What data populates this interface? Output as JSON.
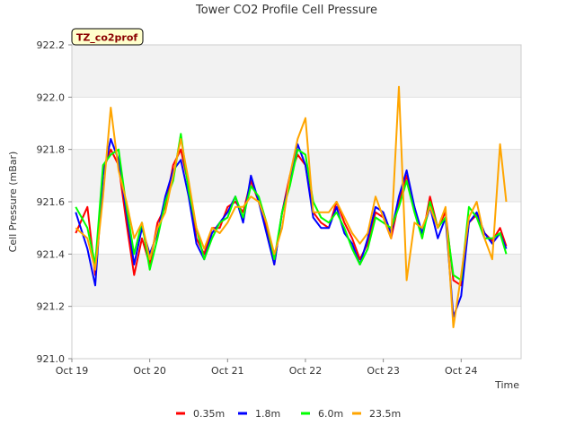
{
  "chart_data": {
    "type": "line",
    "title": "Tower CO2 Profile Cell Pressure",
    "badge": "TZ_co2prof",
    "xlabel": "Time",
    "ylabel": "Cell Pressure (mBar)",
    "ylim": [
      921.0,
      922.2
    ],
    "yticks": [
      921.0,
      921.2,
      921.4,
      921.6,
      921.8,
      922.0,
      922.2
    ],
    "ytick_labels": [
      "921.0",
      "921.2",
      "921.4",
      "921.6",
      "921.8",
      "922.0",
      "922.2"
    ],
    "xlim": [
      0,
      5.77
    ],
    "xticks": [
      0,
      1,
      2,
      3,
      4,
      5
    ],
    "xtick_labels": [
      "Oct 19",
      "Oct 20",
      "Oct 21",
      "Oct 22",
      "Oct 23",
      "Oct 24"
    ],
    "grid": true,
    "legend_position": "bottom",
    "series": [
      {
        "name": "0.35m",
        "color": "#ff0000",
        "x": [
          0.05,
          0.2,
          0.3,
          0.4,
          0.5,
          0.6,
          0.7,
          0.8,
          0.9,
          1.0,
          1.1,
          1.2,
          1.3,
          1.4,
          1.5,
          1.6,
          1.7,
          1.8,
          1.9,
          2.0,
          2.1,
          2.2,
          2.3,
          2.4,
          2.5,
          2.6,
          2.7,
          2.8,
          2.9,
          3.0,
          3.1,
          3.2,
          3.3,
          3.4,
          3.5,
          3.6,
          3.7,
          3.8,
          3.9,
          4.0,
          4.1,
          4.2,
          4.3,
          4.4,
          4.5,
          4.6,
          4.7,
          4.8,
          4.9,
          5.0,
          5.1,
          5.2,
          5.3,
          5.4,
          5.5,
          5.58
        ],
        "values": [
          921.48,
          921.58,
          921.32,
          921.72,
          921.8,
          921.74,
          921.52,
          921.32,
          921.46,
          921.36,
          921.52,
          921.58,
          921.74,
          921.8,
          921.66,
          921.46,
          921.4,
          921.5,
          921.5,
          921.58,
          921.6,
          921.56,
          921.68,
          921.6,
          921.5,
          921.36,
          921.56,
          921.7,
          921.78,
          921.74,
          921.56,
          921.52,
          921.5,
          921.6,
          921.52,
          921.46,
          921.38,
          921.44,
          921.56,
          921.54,
          921.46,
          921.6,
          921.7,
          921.58,
          921.46,
          921.62,
          921.5,
          921.56,
          921.3,
          921.28,
          921.52,
          921.55,
          921.48,
          921.45,
          921.5,
          921.43
        ]
      },
      {
        "name": "1.8m",
        "color": "#0000ff",
        "x": [
          0.05,
          0.2,
          0.3,
          0.4,
          0.5,
          0.6,
          0.7,
          0.8,
          0.9,
          1.0,
          1.1,
          1.2,
          1.3,
          1.4,
          1.5,
          1.6,
          1.7,
          1.8,
          1.9,
          2.0,
          2.1,
          2.2,
          2.3,
          2.4,
          2.5,
          2.6,
          2.7,
          2.8,
          2.9,
          3.0,
          3.1,
          3.2,
          3.3,
          3.4,
          3.5,
          3.6,
          3.7,
          3.8,
          3.9,
          4.0,
          4.1,
          4.2,
          4.3,
          4.4,
          4.5,
          4.6,
          4.7,
          4.8,
          4.9,
          5.0,
          5.1,
          5.2,
          5.3,
          5.4,
          5.5,
          5.58
        ],
        "values": [
          921.56,
          921.42,
          921.28,
          921.7,
          921.84,
          921.76,
          921.56,
          921.36,
          921.5,
          921.4,
          921.48,
          921.62,
          921.72,
          921.76,
          921.62,
          921.44,
          921.38,
          921.48,
          921.52,
          921.56,
          921.62,
          921.52,
          921.7,
          921.6,
          921.48,
          921.36,
          921.56,
          921.68,
          921.82,
          921.74,
          921.54,
          921.5,
          921.5,
          921.58,
          921.48,
          921.44,
          921.36,
          921.46,
          921.58,
          921.56,
          921.48,
          921.62,
          921.72,
          921.58,
          921.48,
          921.58,
          921.46,
          921.54,
          921.16,
          921.24,
          921.52,
          921.56,
          921.48,
          921.44,
          921.48,
          921.42
        ]
      },
      {
        "name": "6.0m",
        "color": "#00ff00",
        "x": [
          0.05,
          0.2,
          0.3,
          0.4,
          0.5,
          0.6,
          0.7,
          0.8,
          0.9,
          1.0,
          1.1,
          1.2,
          1.3,
          1.4,
          1.5,
          1.6,
          1.7,
          1.8,
          1.9,
          2.0,
          2.1,
          2.2,
          2.3,
          2.4,
          2.5,
          2.6,
          2.7,
          2.8,
          2.9,
          3.0,
          3.1,
          3.2,
          3.3,
          3.4,
          3.5,
          3.6,
          3.7,
          3.8,
          3.9,
          4.0,
          4.1,
          4.2,
          4.3,
          4.4,
          4.5,
          4.6,
          4.7,
          4.8,
          4.9,
          5.0,
          5.1,
          5.2,
          5.3,
          5.4,
          5.5,
          5.58
        ],
        "values": [
          921.58,
          921.5,
          921.36,
          921.74,
          921.78,
          921.8,
          921.58,
          921.4,
          921.52,
          921.34,
          921.46,
          921.6,
          921.68,
          921.86,
          921.64,
          921.5,
          921.38,
          921.46,
          921.52,
          921.54,
          921.62,
          921.54,
          921.66,
          921.62,
          921.52,
          921.38,
          921.56,
          921.66,
          921.8,
          921.78,
          921.6,
          921.54,
          921.52,
          921.56,
          921.5,
          921.42,
          921.36,
          921.42,
          921.54,
          921.52,
          921.5,
          921.58,
          921.68,
          921.56,
          921.46,
          921.6,
          921.5,
          921.54,
          921.32,
          921.3,
          921.58,
          921.54,
          921.46,
          921.46,
          921.48,
          921.4
        ]
      },
      {
        "name": "23.5m",
        "color": "#ffa500",
        "x": [
          0.05,
          0.2,
          0.3,
          0.4,
          0.5,
          0.6,
          0.7,
          0.8,
          0.9,
          1.0,
          1.1,
          1.2,
          1.3,
          1.4,
          1.5,
          1.6,
          1.7,
          1.8,
          1.9,
          2.0,
          2.1,
          2.2,
          2.3,
          2.4,
          2.5,
          2.6,
          2.7,
          2.8,
          2.9,
          3.0,
          3.1,
          3.2,
          3.3,
          3.4,
          3.5,
          3.6,
          3.7,
          3.8,
          3.9,
          4.0,
          4.1,
          4.2,
          4.3,
          4.4,
          4.5,
          4.6,
          4.7,
          4.8,
          4.9,
          5.0,
          5.1,
          5.2,
          5.3,
          5.4,
          5.5,
          5.58
        ],
        "values": [
          921.5,
          921.46,
          921.34,
          921.62,
          921.96,
          921.72,
          921.6,
          921.46,
          921.52,
          921.38,
          921.5,
          921.56,
          921.7,
          921.84,
          921.68,
          921.5,
          921.42,
          921.5,
          921.48,
          921.52,
          921.58,
          921.58,
          921.62,
          921.6,
          921.52,
          921.4,
          921.5,
          921.7,
          921.84,
          921.92,
          921.56,
          921.56,
          921.56,
          921.6,
          921.54,
          921.48,
          921.44,
          921.48,
          921.62,
          921.54,
          921.46,
          922.04,
          921.3,
          921.52,
          921.5,
          921.58,
          921.5,
          921.58,
          921.12,
          921.32,
          921.54,
          921.6,
          921.46,
          921.38,
          921.82,
          921.6
        ]
      }
    ]
  }
}
